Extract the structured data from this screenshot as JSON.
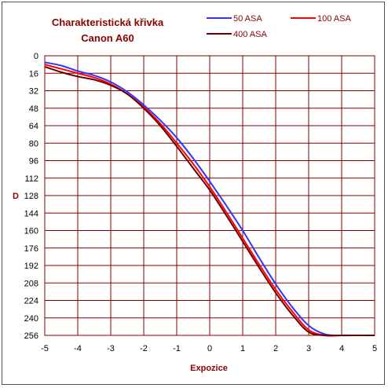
{
  "chart_data": {
    "type": "line",
    "title": "Charakteristická křivka",
    "subtitle": "Canon A60",
    "xlabel": "Expozice",
    "ylabel": "D",
    "xlim": [
      -5,
      5
    ],
    "ylim": [
      0,
      256
    ],
    "y_inverted": true,
    "grid": true,
    "legend_position": "top-right",
    "x_ticks": [
      "-5",
      "-4",
      "-3",
      "-2",
      "-1",
      "0",
      "1",
      "2",
      "3",
      "4",
      "5"
    ],
    "y_ticks": [
      "0",
      "16",
      "32",
      "48",
      "64",
      "80",
      "96",
      "112",
      "128",
      "144",
      "160",
      "176",
      "192",
      "208",
      "224",
      "240",
      "256"
    ],
    "colors": {
      "grid": "#800000",
      "title": "#8b0000"
    },
    "series": [
      {
        "name": "50 ASA",
        "color": "#3333ff",
        "x": [
          -5,
          -4.5,
          -4,
          -3.5,
          -3,
          -2.5,
          -2,
          -1.5,
          -1,
          -0.5,
          0,
          0.5,
          1,
          1.5,
          2,
          2.5,
          3,
          3.5,
          4,
          4.5,
          5
        ],
        "y": [
          6,
          9,
          14,
          18,
          24,
          33,
          45,
          59,
          75,
          94,
          115,
          137,
          160,
          185,
          209,
          230,
          247,
          255,
          256,
          256,
          256
        ]
      },
      {
        "name": "100 ASA",
        "color": "#ff0000",
        "x": [
          -5,
          -4.5,
          -4,
          -3.5,
          -3,
          -2.5,
          -2,
          -1.5,
          -1,
          -0.5,
          0,
          0.5,
          1,
          1.5,
          2,
          2.5,
          3,
          3.5,
          4,
          4.5,
          5
        ],
        "y": [
          8,
          12,
          16,
          20,
          26,
          35,
          47,
          62,
          80,
          99,
          120,
          143,
          167,
          191,
          214,
          234,
          251,
          256,
          256,
          256,
          256
        ]
      },
      {
        "name": "400 ASA",
        "color": "#660000",
        "x": [
          -5,
          -4.5,
          -4,
          -3.5,
          -3,
          -2.5,
          -2,
          -1.5,
          -1,
          -0.5,
          0,
          0.5,
          1,
          1.5,
          2,
          2.5,
          3,
          3.5,
          4,
          4.5,
          5
        ],
        "y": [
          10,
          15,
          19,
          22,
          27,
          35,
          48,
          64,
          83,
          103,
          123,
          146,
          170,
          194,
          217,
          237,
          253,
          256,
          256,
          256,
          256
        ]
      }
    ]
  }
}
